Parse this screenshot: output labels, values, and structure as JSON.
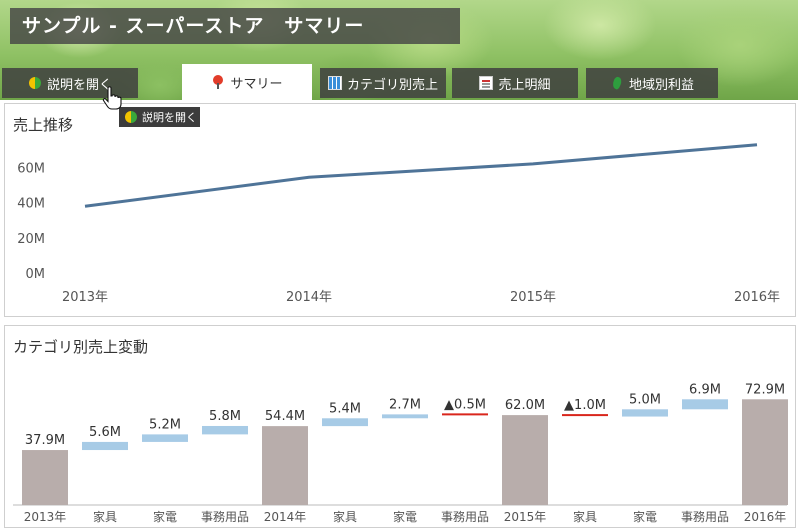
{
  "header": {
    "title": "サンプル - スーパーストア　サマリー"
  },
  "help_tab": {
    "label": "説明を開く",
    "icon": "beginner-leaf-icon"
  },
  "tabs": [
    {
      "label": "サマリー",
      "icon": "map-pin-icon",
      "active": true
    },
    {
      "label": "カテゴリ別売上",
      "icon": "grid-icon",
      "active": false
    },
    {
      "label": "売上明細",
      "icon": "document-icon",
      "active": false
    },
    {
      "label": "地域別利益",
      "icon": "japan-map-icon",
      "active": false
    }
  ],
  "tooltip": {
    "text": "説明を開く"
  },
  "chart_data": [
    {
      "type": "line",
      "title": "売上推移",
      "x": [
        "2013年",
        "2014年",
        "2015年",
        "2016年"
      ],
      "values": [
        37.9,
        54.4,
        62.0,
        72.9
      ],
      "y_ticks": [
        "0M",
        "20M",
        "40M",
        "60M"
      ],
      "ylim": [
        0,
        80
      ],
      "line_color": "#4f7498",
      "grid": false
    },
    {
      "type": "bar",
      "title": "カテゴリ別売上変動",
      "categories": [
        "2013年",
        "家具",
        "家電",
        "事務用品",
        "2014年",
        "家具",
        "家電",
        "事務用品",
        "2015年",
        "家具",
        "家電",
        "事務用品",
        "2016年"
      ],
      "values": [
        37.9,
        5.6,
        5.2,
        5.8,
        54.4,
        5.4,
        2.7,
        -0.5,
        62.0,
        -1.0,
        5.0,
        6.9,
        72.9
      ],
      "labels": [
        "37.9M",
        "5.6M",
        "5.2M",
        "5.8M",
        "54.4M",
        "5.4M",
        "2.7M",
        "▲0.5M",
        "62.0M",
        "▲1.0M",
        "5.0M",
        "6.9M",
        "72.9M"
      ],
      "kinds": [
        "total",
        "delta",
        "delta",
        "delta",
        "total",
        "delta",
        "delta",
        "delta",
        "total",
        "delta",
        "delta",
        "delta",
        "total"
      ],
      "colors": {
        "total": "#b8adab",
        "increase": "#a7cbe6",
        "decrease": "#d9261c"
      }
    }
  ]
}
